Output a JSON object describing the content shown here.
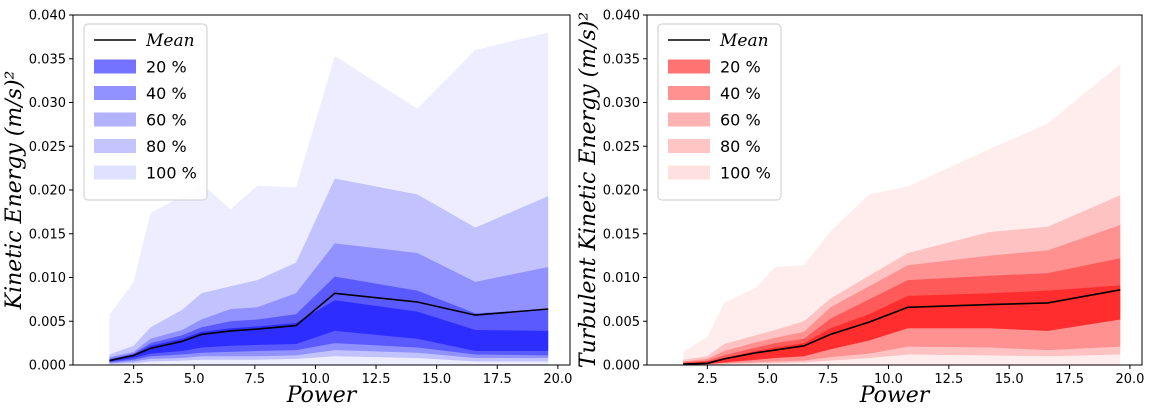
{
  "chart_data": [
    {
      "type": "area",
      "title": "",
      "xlabel": "Power",
      "ylabel": "Kinetic Energy (m/s)²",
      "xlim": [
        0,
        20.5
      ],
      "ylim": [
        0,
        0.04
      ],
      "xticks": [
        "2.5",
        "5.0",
        "7.5",
        "10.0",
        "12.5",
        "15.0",
        "17.5",
        "20.0"
      ],
      "yticks": [
        "0.000",
        "0.005",
        "0.010",
        "0.015",
        "0.020",
        "0.025",
        "0.030",
        "0.035",
        "0.040"
      ],
      "color": "#0000ff",
      "legend_position": "top-left",
      "x": [
        1.5,
        2.5,
        3.2,
        4.5,
        5.3,
        6.5,
        7.6,
        9.2,
        10.8,
        14.2,
        16.6,
        19.6
      ],
      "mean": [
        0.0005,
        0.0011,
        0.0019,
        0.0027,
        0.0035,
        0.0039,
        0.0041,
        0.0045,
        0.0082,
        0.0072,
        0.0057,
        0.0064
      ],
      "series": [
        {
          "name": "20 %",
          "opacity": 0.5,
          "upper": [
            0.0006,
            0.0012,
            0.0022,
            0.003,
            0.0038,
            0.0042,
            0.0044,
            0.0048,
            0.0074,
            0.0061,
            0.004,
            0.0039
          ],
          "lower": [
            0.0004,
            0.0008,
            0.0013,
            0.0016,
            0.002,
            0.0022,
            0.0023,
            0.0024,
            0.0039,
            0.003,
            0.0016,
            0.0016
          ]
        },
        {
          "name": "40 %",
          "opacity": 0.38,
          "upper": [
            0.0007,
            0.0013,
            0.0025,
            0.0034,
            0.0043,
            0.005,
            0.0052,
            0.0058,
            0.0101,
            0.0085,
            0.0059,
            0.0064
          ],
          "lower": [
            0.0003,
            0.0006,
            0.001,
            0.0012,
            0.0014,
            0.0015,
            0.0016,
            0.0017,
            0.0025,
            0.002,
            0.0012,
            0.0011
          ]
        },
        {
          "name": "60 %",
          "opacity": 0.25,
          "upper": [
            0.0009,
            0.0015,
            0.003,
            0.004,
            0.0052,
            0.0064,
            0.0066,
            0.0082,
            0.0139,
            0.0128,
            0.0095,
            0.0112
          ],
          "lower": [
            0.0002,
            0.0004,
            0.0007,
            0.0008,
            0.001,
            0.001,
            0.001,
            0.0011,
            0.0017,
            0.0014,
            0.0008,
            0.0008
          ]
        },
        {
          "name": "80 %",
          "opacity": 0.18,
          "upper": [
            0.0012,
            0.0022,
            0.0043,
            0.0063,
            0.0082,
            0.009,
            0.0097,
            0.0117,
            0.0213,
            0.0195,
            0.0157,
            0.0193
          ],
          "lower": [
            0.0001,
            0.0002,
            0.0004,
            0.0005,
            0.0006,
            0.0006,
            0.0006,
            0.0007,
            0.001,
            0.0008,
            0.0004,
            0.0004
          ]
        },
        {
          "name": "100 %",
          "opacity": 0.07,
          "upper": [
            0.0057,
            0.0095,
            0.0174,
            0.0193,
            0.0207,
            0.0178,
            0.0205,
            0.0203,
            0.0353,
            0.0293,
            0.036,
            0.038
          ],
          "lower": [
            0.0,
            0.0,
            0.0,
            0.0,
            0.0,
            0.0,
            0.0,
            0.0,
            0.0,
            0.0,
            0.0,
            0.0
          ]
        }
      ],
      "legend": [
        "Mean",
        "20 %",
        "40 %",
        "60 %",
        "80 %",
        "100 %"
      ]
    },
    {
      "type": "area",
      "title": "",
      "xlabel": "Power",
      "ylabel": "Turbulent Kinetic Energy (m/s)²",
      "xlim": [
        0,
        20.5
      ],
      "ylim": [
        0,
        0.04
      ],
      "xticks": [
        "2.5",
        "5.0",
        "7.5",
        "10.0",
        "12.5",
        "15.0",
        "17.5",
        "20.0"
      ],
      "yticks": [
        "0.000",
        "0.005",
        "0.010",
        "0.015",
        "0.020",
        "0.025",
        "0.030",
        "0.035",
        "0.040"
      ],
      "color": "#ff0000",
      "legend_position": "top-left",
      "x": [
        1.5,
        2.5,
        3.2,
        4.5,
        5.3,
        6.5,
        7.6,
        9.2,
        10.8,
        14.2,
        16.6,
        19.6
      ],
      "mean": [
        0.0001,
        0.0002,
        0.0007,
        0.0014,
        0.0017,
        0.0022,
        0.0035,
        0.0049,
        0.0066,
        0.0069,
        0.0071,
        0.0086
      ],
      "series": [
        {
          "name": "20 %",
          "opacity": 0.5,
          "upper": [
            0.0002,
            0.0004,
            0.0008,
            0.0016,
            0.002,
            0.0025,
            0.0042,
            0.0058,
            0.0079,
            0.0082,
            0.0085,
            0.0091
          ],
          "lower": [
            0.0001,
            0.0001,
            0.0003,
            0.0006,
            0.0008,
            0.001,
            0.0018,
            0.0028,
            0.0042,
            0.0042,
            0.0039,
            0.0052
          ]
        },
        {
          "name": "40 %",
          "opacity": 0.38,
          "upper": [
            0.0003,
            0.0005,
            0.0011,
            0.002,
            0.0025,
            0.003,
            0.0053,
            0.0075,
            0.0097,
            0.0102,
            0.0105,
            0.0122
          ]
        },
        {
          "name": "60 %",
          "opacity": 0.25,
          "upper": [
            0.0004,
            0.0007,
            0.0016,
            0.0026,
            0.0031,
            0.0038,
            0.0066,
            0.009,
            0.0114,
            0.0125,
            0.0131,
            0.016
          ],
          "lower": [
            0.0,
            0.0001,
            0.0002,
            0.0003,
            0.0004,
            0.0005,
            0.0009,
            0.0013,
            0.0021,
            0.002,
            0.0017,
            0.0021
          ]
        },
        {
          "name": "80 %",
          "opacity": 0.18,
          "upper": [
            0.0006,
            0.001,
            0.0024,
            0.0034,
            0.004,
            0.005,
            0.0076,
            0.0102,
            0.0128,
            0.0152,
            0.0158,
            0.0194
          ],
          "lower": [
            0.0,
            0.0,
            0.0001,
            0.0002,
            0.0002,
            0.0003,
            0.0005,
            0.0008,
            0.0012,
            0.0011,
            0.001,
            0.0012
          ]
        },
        {
          "name": "100 %",
          "opacity": 0.07,
          "upper": [
            0.0015,
            0.0032,
            0.0071,
            0.0088,
            0.0112,
            0.0114,
            0.0153,
            0.0195,
            0.0204,
            0.0247,
            0.0276,
            0.0344
          ],
          "lower": [
            0.0,
            0.0,
            0.0,
            0.0,
            0.0,
            0.0,
            0.0,
            0.0,
            0.0,
            0.0,
            0.0,
            0.0
          ]
        }
      ],
      "legend": [
        "Mean",
        "20 %",
        "40 %",
        "60 %",
        "80 %",
        "100 %"
      ]
    }
  ]
}
